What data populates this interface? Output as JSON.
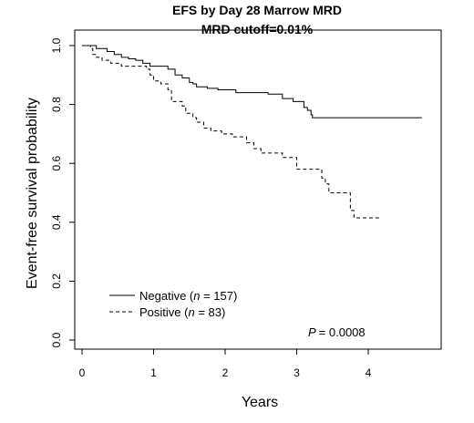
{
  "chart_data": {
    "type": "line",
    "title": "EFS by Day 28 Marrow MRD",
    "subtitle": "MRD cutoff=0.01%",
    "xlabel": "Years",
    "ylabel": "Event-free survival probability",
    "xlim": [
      0,
      4.8
    ],
    "ylim": [
      0,
      1
    ],
    "x_ticks": [
      "0",
      "1",
      "2",
      "3",
      "4"
    ],
    "y_ticks": [
      "0.0",
      "0.2",
      "0.4",
      "0.6",
      "0.8",
      "1.0"
    ],
    "grid": false,
    "legend_position": "bottom-left",
    "annotation": {
      "p_label": "P",
      "p_value": "= 0.0008"
    },
    "series": [
      {
        "legend_label": "Negative (",
        "legend_n": "n",
        "legend_count": " = 157)",
        "line_style": "solid",
        "color": "#000000",
        "points": [
          [
            0,
            1.0
          ],
          [
            0.2,
            0.99
          ],
          [
            0.35,
            0.98
          ],
          [
            0.45,
            0.97
          ],
          [
            0.55,
            0.96
          ],
          [
            0.65,
            0.955
          ],
          [
            0.75,
            0.95
          ],
          [
            0.85,
            0.94
          ],
          [
            0.95,
            0.93
          ],
          [
            1.2,
            0.92
          ],
          [
            1.3,
            0.9
          ],
          [
            1.4,
            0.89
          ],
          [
            1.5,
            0.875
          ],
          [
            1.55,
            0.87
          ],
          [
            1.6,
            0.86
          ],
          [
            1.75,
            0.855
          ],
          [
            1.9,
            0.85
          ],
          [
            2.15,
            0.84
          ],
          [
            2.6,
            0.835
          ],
          [
            2.8,
            0.82
          ],
          [
            2.95,
            0.81
          ],
          [
            3.1,
            0.79
          ],
          [
            3.15,
            0.78
          ],
          [
            3.2,
            0.765
          ],
          [
            3.22,
            0.755
          ],
          [
            4.75,
            0.755
          ]
        ]
      },
      {
        "legend_label": "Positive (",
        "legend_n": "n",
        "legend_count": " = 83)",
        "line_style": "dashed",
        "color": "#000000",
        "points": [
          [
            0,
            1.0
          ],
          [
            0.12,
            0.99
          ],
          [
            0.15,
            0.97
          ],
          [
            0.2,
            0.96
          ],
          [
            0.28,
            0.95
          ],
          [
            0.4,
            0.94
          ],
          [
            0.55,
            0.93
          ],
          [
            0.9,
            0.92
          ],
          [
            0.95,
            0.9
          ],
          [
            1.0,
            0.88
          ],
          [
            1.1,
            0.87
          ],
          [
            1.2,
            0.85
          ],
          [
            1.25,
            0.81
          ],
          [
            1.4,
            0.795
          ],
          [
            1.45,
            0.77
          ],
          [
            1.55,
            0.755
          ],
          [
            1.6,
            0.74
          ],
          [
            1.7,
            0.72
          ],
          [
            1.8,
            0.71
          ],
          [
            1.95,
            0.7
          ],
          [
            2.1,
            0.69
          ],
          [
            2.3,
            0.67
          ],
          [
            2.4,
            0.65
          ],
          [
            2.5,
            0.635
          ],
          [
            2.8,
            0.62
          ],
          [
            3.0,
            0.58
          ],
          [
            3.3,
            0.58
          ],
          [
            3.35,
            0.55
          ],
          [
            3.4,
            0.53
          ],
          [
            3.45,
            0.5
          ],
          [
            3.75,
            0.44
          ],
          [
            3.8,
            0.415
          ],
          [
            4.15,
            0.415
          ]
        ]
      }
    ]
  }
}
